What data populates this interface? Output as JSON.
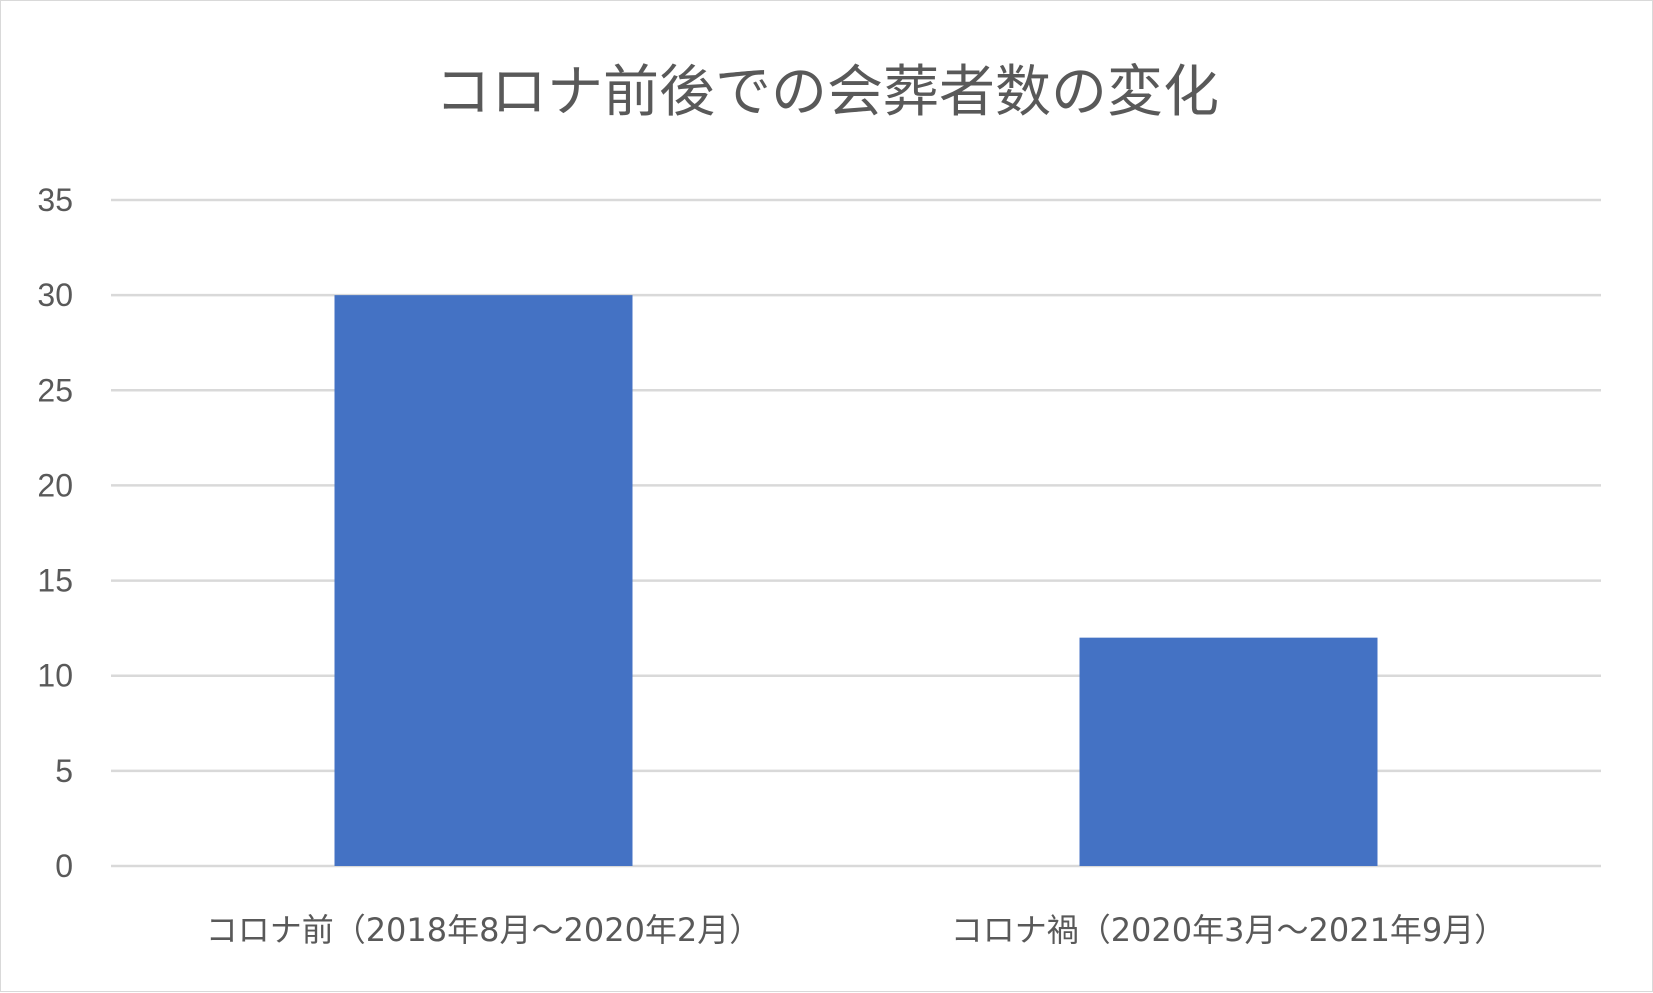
{
  "chart_data": {
    "type": "bar",
    "title": "コロナ前後での会葬者数の変化",
    "categories": [
      "コロナ前（2018年8月～2020年2月）",
      "コロナ禍（2020年3月～2021年9月）"
    ],
    "values": [
      30,
      12
    ],
    "xlabel": "",
    "ylabel": "",
    "ylim": [
      0,
      35
    ],
    "yticks": [
      0,
      5,
      10,
      15,
      20,
      25,
      30,
      35
    ],
    "grid": true,
    "legend": "none",
    "bar_color": "#4472c4",
    "grid_color": "#d9d9d9",
    "text_color": "#595959"
  }
}
